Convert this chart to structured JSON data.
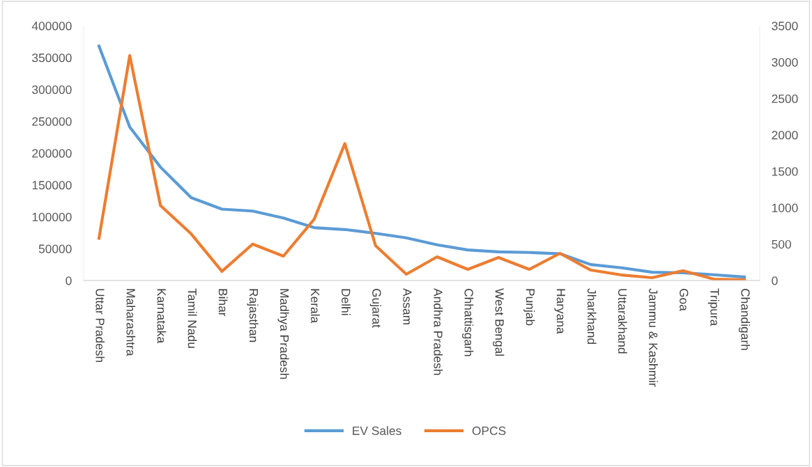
{
  "chart_data": {
    "type": "line",
    "categories": [
      "Uttar Pradesh",
      "Maharashtra",
      "Karnataka",
      "Tamil Nadu",
      "Bihar",
      "Rajasthan",
      "Madhya Pradesh",
      "Kerala",
      "Delhi",
      "Gujarat",
      "Assam",
      "Andhra Pradesh",
      "Chhattisgarh",
      "West Bengal",
      "Punjab",
      "Haryana",
      "Jharkhand",
      "Uttarakhand",
      "Jammu & Kashmir",
      "Goa",
      "Tripura",
      "Chandigarh"
    ],
    "series": [
      {
        "name": "EV Sales",
        "color": "#5b9bd5",
        "values": [
          368000,
          241000,
          178000,
          130000,
          112000,
          109000,
          98000,
          83000,
          80000,
          74000,
          67000,
          56000,
          48000,
          45000,
          44000,
          42000,
          25000,
          20000,
          13000,
          12000,
          9000,
          5500
        ]
      },
      {
        "name": "OPCS",
        "color": "#ed7d31",
        "axis": "y2",
        "values": [
          580,
          3090,
          1030,
          640,
          125,
          500,
          335,
          840,
          1880,
          478,
          86,
          325,
          153,
          315,
          153,
          373,
          143,
          76,
          38,
          134,
          19,
          10
        ]
      }
    ],
    "ylim": [
      0,
      400000
    ],
    "yticks": [
      0,
      50000,
      100000,
      150000,
      200000,
      250000,
      300000,
      350000,
      400000
    ],
    "y2lim": [
      0,
      3500
    ],
    "y2ticks": [
      0,
      500,
      1000,
      1500,
      2000,
      2500,
      3000,
      3500
    ],
    "grid": false,
    "legend": "bottom",
    "marker": "none",
    "line_style": "solid"
  }
}
